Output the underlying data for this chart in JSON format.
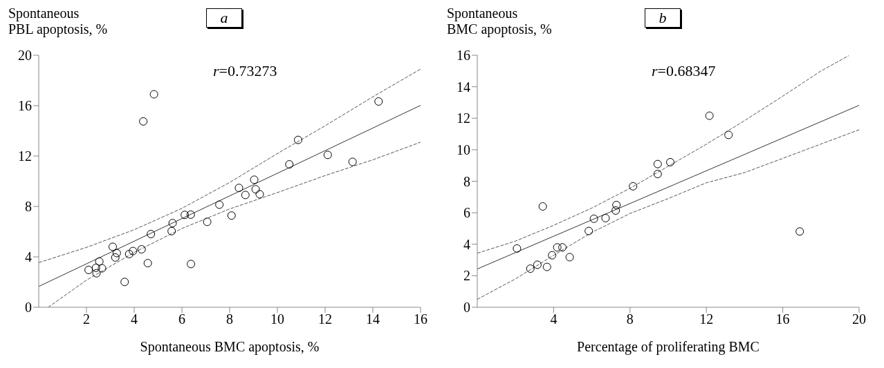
{
  "chart_data": [
    {
      "type": "scatter",
      "title": "a",
      "xlabel": "Spontaneous BMC apoptosis, %",
      "ylabel": "Spontaneous PBL apoptosis, %",
      "annotations": [
        "r=0.73273"
      ],
      "xlim": [
        0,
        16
      ],
      "xticks": [
        2,
        4,
        6,
        8,
        10,
        12,
        14,
        16
      ],
      "ylim": [
        0,
        20
      ],
      "yticks": [
        0,
        4,
        8,
        12,
        16,
        20
      ],
      "series": [
        {
          "type": "scatter",
          "marker": "circle",
          "color": "#000000",
          "x": [
            2.09,
            2.4,
            2.42,
            2.65,
            2.54,
            3.1,
            3.27,
            3.21,
            3.79,
            3.95,
            4.31,
            3.6,
            4.57,
            4.38,
            4.83,
            4.7,
            5.57,
            5.61,
            6.12,
            6.37,
            6.38,
            7.06,
            7.57,
            8.08,
            8.39,
            8.66,
            9.03,
            9.09,
            9.26,
            10.5,
            10.87,
            12.11,
            13.15,
            14.24
          ],
          "values": [
            2.96,
            3.13,
            2.7,
            3.09,
            3.63,
            4.8,
            4.3,
            3.95,
            4.22,
            4.46,
            4.6,
            2.01,
            3.5,
            14.75,
            16.9,
            5.81,
            6.04,
            6.68,
            7.33,
            7.35,
            3.43,
            6.78,
            8.14,
            7.28,
            9.47,
            8.91,
            10.12,
            9.36,
            8.97,
            11.34,
            13.28,
            12.09,
            11.54,
            16.33
          ]
        },
        {
          "type": "line",
          "line_style": "solid",
          "color": "#333333",
          "x": [
            0,
            16
          ],
          "values": [
            1.65,
            16.02
          ]
        },
        {
          "type": "line",
          "line_style": "dashed",
          "color": "#555555",
          "x": [
            0,
            2,
            4,
            6,
            8,
            10,
            12,
            14,
            16
          ],
          "values": [
            3.54,
            4.75,
            6.15,
            7.85,
            9.9,
            12.2,
            14.4,
            16.7,
            18.9
          ]
        },
        {
          "type": "line",
          "line_style": "dashed",
          "color": "#555555",
          "x": [
            0.4,
            2,
            4,
            6,
            8,
            10,
            12,
            14,
            16
          ],
          "values": [
            0,
            2.15,
            4.35,
            6.25,
            7.8,
            9.1,
            10.45,
            11.7,
            13.1
          ]
        }
      ]
    },
    {
      "type": "scatter",
      "title": "b",
      "xlabel": "Percentage of proliferating BMC",
      "ylabel": "Spontaneous BMC apoptosis, %",
      "annotations": [
        "r=0.68347"
      ],
      "xlim": [
        0,
        20
      ],
      "xticks": [
        4,
        8,
        12,
        16,
        20
      ],
      "ylim": [
        0,
        16
      ],
      "yticks": [
        0,
        2,
        4,
        6,
        8,
        10,
        12,
        14,
        16
      ],
      "series": [
        {
          "type": "scatter",
          "marker": "circle",
          "color": "#000000",
          "x": [
            2.08,
            2.78,
            3.15,
            3.43,
            3.65,
            3.92,
            4.19,
            4.46,
            4.84,
            5.84,
            6.11,
            6.72,
            7.25,
            7.29,
            8.16,
            9.45,
            9.45,
            10.11,
            12.16,
            13.16,
            16.89
          ],
          "values": [
            3.73,
            2.45,
            2.7,
            6.4,
            2.56,
            3.3,
            3.8,
            3.8,
            3.18,
            4.84,
            5.62,
            5.66,
            6.14,
            6.49,
            7.68,
            8.46,
            9.09,
            9.21,
            12.16,
            10.94,
            4.81
          ]
        },
        {
          "type": "line",
          "line_style": "solid",
          "color": "#333333",
          "x": [
            0,
            20
          ],
          "values": [
            2.43,
            12.82
          ]
        },
        {
          "type": "line",
          "line_style": "dashed",
          "color": "#555555",
          "x": [
            0,
            2,
            4,
            6,
            8,
            10,
            12,
            14,
            16,
            18,
            19.45
          ],
          "values": [
            3.43,
            4.2,
            5.2,
            6.3,
            7.55,
            8.95,
            10.35,
            11.85,
            13.4,
            15.0,
            15.97
          ]
        },
        {
          "type": "line",
          "line_style": "dashed",
          "color": "#555555",
          "x": [
            0,
            2,
            4,
            6,
            8,
            10,
            12,
            14,
            16,
            18,
            20
          ],
          "values": [
            0.5,
            1.8,
            3.3,
            4.75,
            5.95,
            6.9,
            7.9,
            8.55,
            9.45,
            10.36,
            11.27
          ]
        }
      ]
    }
  ]
}
